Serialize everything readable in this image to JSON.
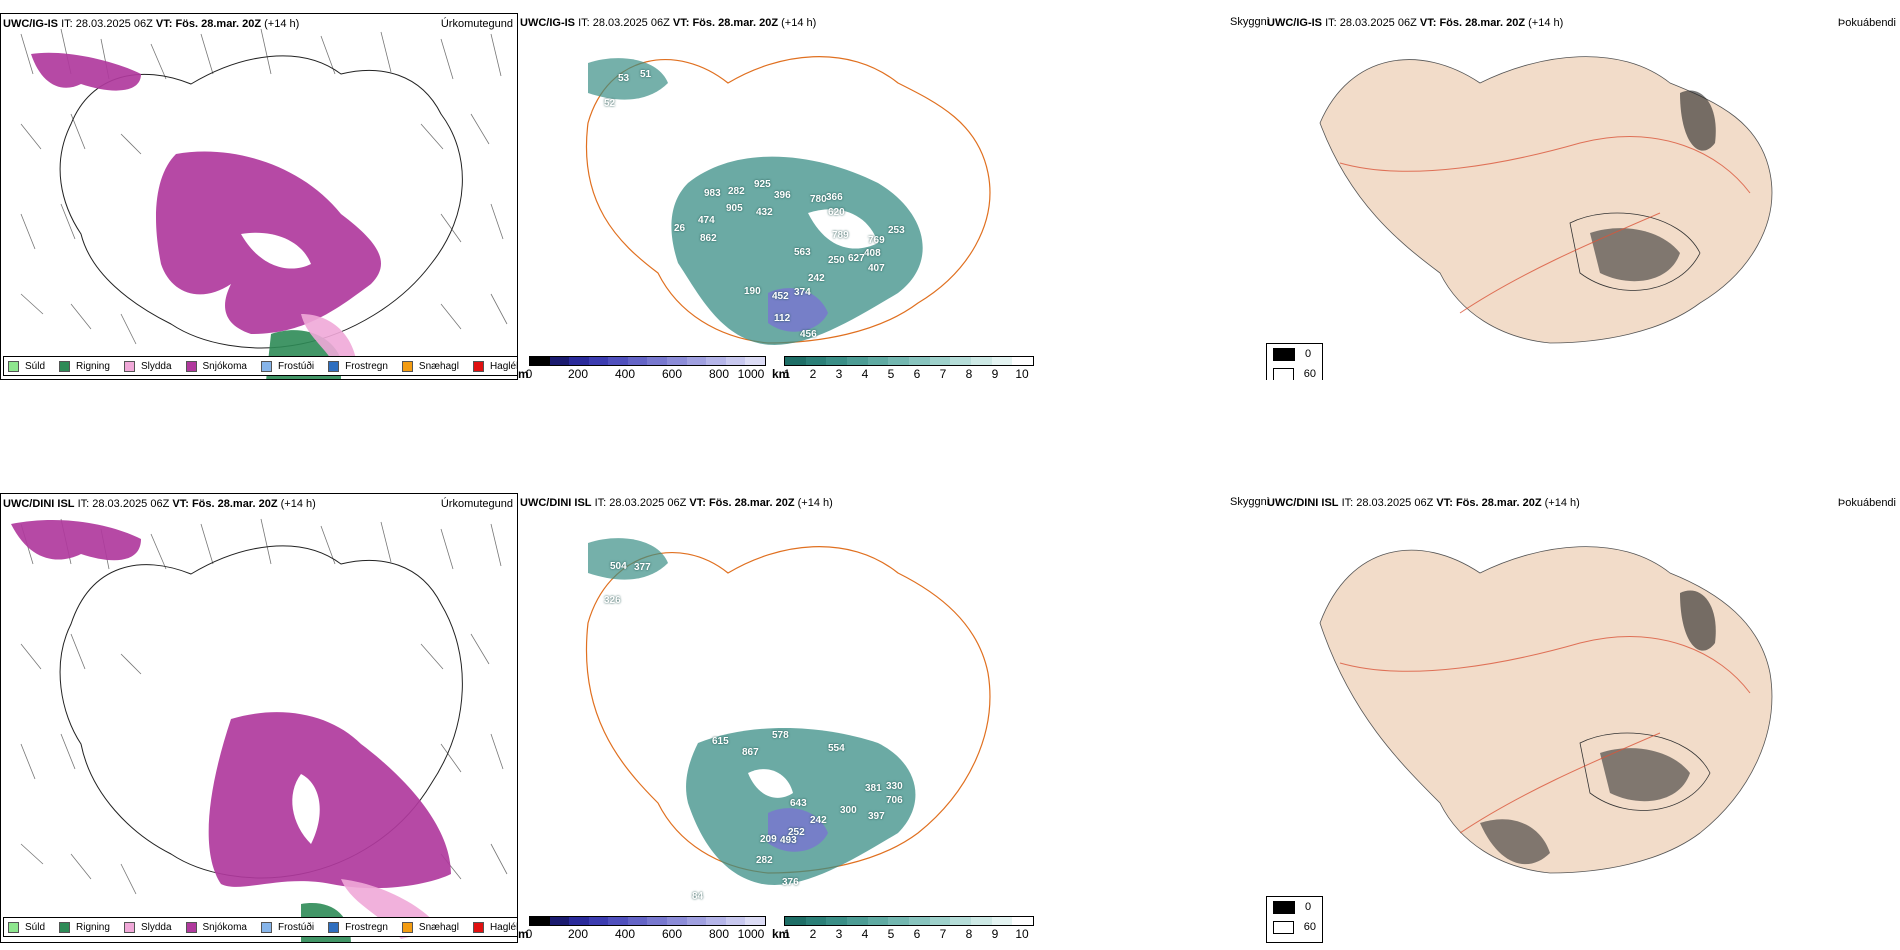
{
  "rows": [
    {
      "p1_title": {
        "model": "UWC/IG-IS",
        "it_label": "IT:",
        "it_value": "28.03.2025 06Z",
        "vt_label": "VT:",
        "vt_value": "Fös. 28.mar. 20Z",
        "lead": "(+14 h)"
      },
      "p1_right": "Úrkomutegund",
      "p2_title": {
        "model": "UWC/IG-IS",
        "it_label": "IT:",
        "it_value": "28.03.2025 06Z",
        "vt_label": "VT:",
        "vt_value": "Fös. 28.mar. 20Z",
        "lead": "(+14 h)"
      },
      "p2_right": "Skyggni",
      "p3_title": {
        "model": "UWC/IG-IS",
        "it_label": "IT:",
        "it_value": "28.03.2025 06Z",
        "vt_label": "VT:",
        "vt_value": "Fös. 28.mar. 20Z",
        "lead": "(+14 h)"
      },
      "p3_right": "Þokuábendi",
      "cloud_labels": [
        "51",
        "53",
        "52",
        "983",
        "282",
        "925",
        "396",
        "780",
        "366",
        "905",
        "474",
        "432",
        "620",
        "26",
        "862",
        "789",
        "769",
        "563",
        "408",
        "250",
        "627",
        "253",
        "407",
        "242",
        "190",
        "374",
        "452",
        "112",
        "456"
      ]
    },
    {
      "p1_title": {
        "model": "UWC/DINI ISL",
        "it_label": "IT:",
        "it_value": "28.03.2025 06Z",
        "vt_label": "VT:",
        "vt_value": "Fös. 28.mar. 20Z",
        "lead": "(+14 h)"
      },
      "p1_right": "Úrkomutegund",
      "p2_title": {
        "model": "UWC/DINI ISL",
        "it_label": "IT:",
        "it_value": "28.03.2025 06Z",
        "vt_label": "VT:",
        "vt_value": "Fös. 28.mar. 20Z",
        "lead": "(+14 h)"
      },
      "p2_right": "Skyggni",
      "p3_title": {
        "model": "UWC/DINI ISL",
        "it_label": "IT:",
        "it_value": "28.03.2025 06Z",
        "vt_label": "VT:",
        "vt_value": "Fös. 28.mar. 20Z",
        "lead": "(+14 h)"
      },
      "p3_right": "Þokuábendi",
      "cloud_labels": [
        "504",
        "377",
        "326",
        "615",
        "578",
        "867",
        "554",
        "643",
        "381",
        "330",
        "706",
        "300",
        "397",
        "242",
        "252",
        "209",
        "493",
        "282",
        "376",
        "84"
      ]
    }
  ],
  "precip_legend": [
    {
      "label": "Súld",
      "color": "#8ee68e"
    },
    {
      "label": "Rigning",
      "color": "#2e8b57"
    },
    {
      "label": "Slydda",
      "color": "#f0a8d8"
    },
    {
      "label": "Snjókoma",
      "color": "#b0399d"
    },
    {
      "label": "Frostúði",
      "color": "#87b5ea"
    },
    {
      "label": "Frostregn",
      "color": "#2f6fbf"
    },
    {
      "label": "Snæhagl",
      "color": "#f39c12"
    },
    {
      "label": "Haglél",
      "color": "#e01010"
    }
  ],
  "cloud_base_scale": {
    "unit": "m",
    "ticks": [
      "0",
      "200",
      "400",
      "600",
      "800",
      "1000"
    ],
    "colors": [
      "#000000",
      "#1a1a6e",
      "#2a2a9a",
      "#3c3cb0",
      "#5050bd",
      "#6464c6",
      "#7878cf",
      "#8c8cd8",
      "#a0a0e0",
      "#b4b4e8",
      "#c8c8ef",
      "#dcdcf5"
    ]
  },
  "visibility_scale": {
    "unit": "km",
    "ticks": [
      "1",
      "2",
      "3",
      "4",
      "5",
      "6",
      "7",
      "8",
      "9",
      "10"
    ],
    "colors": [
      "#1e6e66",
      "#2b7f77",
      "#3a8e86",
      "#4c9c94",
      "#5faaa2",
      "#73b7b0",
      "#88c4be",
      "#9ed1cb",
      "#b5ddd8",
      "#cde9e5",
      "#e4f4f2",
      "#ffffff"
    ]
  },
  "fog_legend": [
    {
      "label": "0",
      "color": "#000000"
    },
    {
      "label": "60",
      "color": "#ffffff"
    }
  ]
}
